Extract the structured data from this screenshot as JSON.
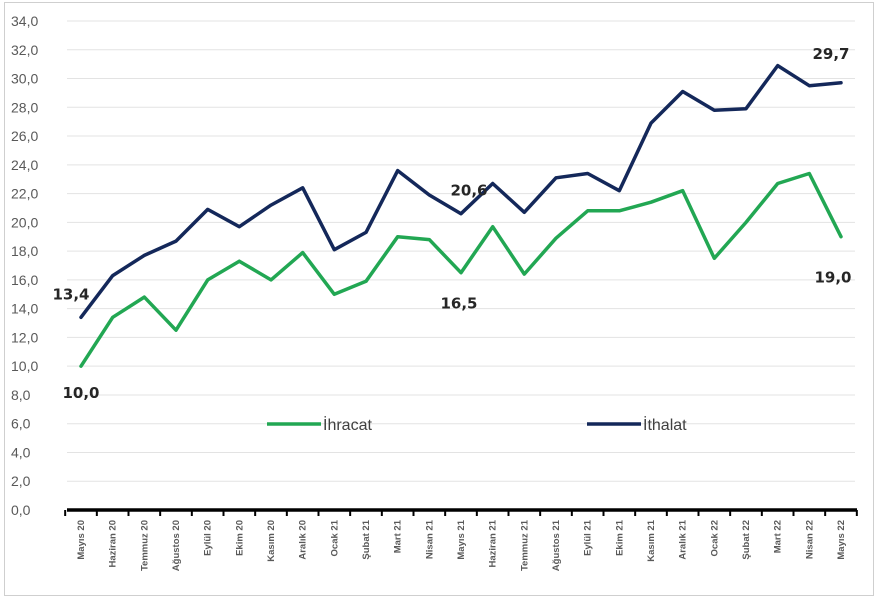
{
  "chart_data": {
    "type": "line",
    "categories": [
      "Mayıs 20",
      "Haziran 20",
      "Temmuz 20",
      "Ağustos 20",
      "Eylül 20",
      "Ekim 20",
      "Kasım 20",
      "Aralık 20",
      "Ocak 21",
      "Şubat 21",
      "Mart 21",
      "Nisan 21",
      "Mayıs 21",
      "Haziran 21",
      "Temmuz 21",
      "Ağustos 21",
      "Eylül 21",
      "Ekim 21",
      "Kasım 21",
      "Aralık 21",
      "Ocak 22",
      "Şubat 22",
      "Mart 22",
      "Nisan 22",
      "Mayıs 22"
    ],
    "series": [
      {
        "name": "İhracat",
        "color": "#22a753",
        "values": [
          10.0,
          13.4,
          14.8,
          12.5,
          16.0,
          17.3,
          16.0,
          17.9,
          15.0,
          15.9,
          19.0,
          18.8,
          16.5,
          19.7,
          16.4,
          18.9,
          20.8,
          20.8,
          21.4,
          22.2,
          17.5,
          20.0,
          22.7,
          23.4,
          19.0
        ]
      },
      {
        "name": "İthalat",
        "color": "#14285a",
        "values": [
          13.4,
          16.3,
          17.7,
          18.7,
          20.9,
          19.7,
          21.2,
          22.4,
          18.1,
          19.3,
          23.6,
          21.9,
          20.6,
          22.7,
          20.7,
          23.1,
          23.4,
          22.2,
          26.9,
          29.1,
          27.8,
          27.9,
          30.9,
          29.5,
          29.7
        ]
      }
    ],
    "ylim": [
      0,
      34
    ],
    "yticks": [
      "0,0",
      "2,0",
      "4,0",
      "6,0",
      "8,0",
      "10,0",
      "12,0",
      "14,0",
      "16,0",
      "18,0",
      "20,0",
      "22,0",
      "24,0",
      "26,0",
      "28,0",
      "30,0",
      "32,0",
      "34,0"
    ],
    "data_labels": [
      {
        "series": 0,
        "index": 0,
        "text": "10,0"
      },
      {
        "series": 1,
        "index": 0,
        "text": "13,4"
      },
      {
        "series": 0,
        "index": 12,
        "text": "16,5"
      },
      {
        "series": 1,
        "index": 12,
        "text": "20,6"
      },
      {
        "series": 0,
        "index": 24,
        "text": "19,0"
      },
      {
        "series": 1,
        "index": 24,
        "text": "29,7"
      }
    ],
    "grid": true,
    "legend": "inside-lower-middle"
  }
}
